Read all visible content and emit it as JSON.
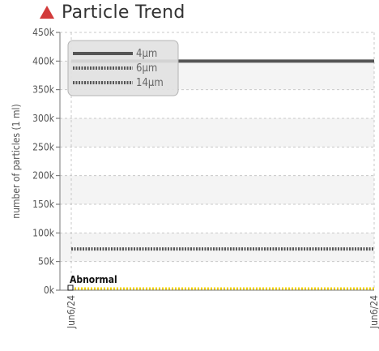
{
  "header": {
    "title": "Particle Trend"
  },
  "colors": {
    "alert_triangle": "#d23a3a",
    "series_4um": "#555555",
    "series_6um": "#555555",
    "series_14um": "#555555",
    "threshold": "#f0d000",
    "grid": "#c8c8c8"
  },
  "icons": {
    "title_icon": "alert-triangle-icon"
  },
  "chart_data": {
    "type": "line",
    "title": "Particle Trend",
    "xlabel": "",
    "ylabel": "number of particles (1 ml)",
    "x": [
      "Jun6/24",
      "Jun6/24"
    ],
    "ylim": [
      0,
      450000
    ],
    "yticks": [
      "0k",
      "50k",
      "100k",
      "150k",
      "200k",
      "250k",
      "300k",
      "350k",
      "400k",
      "450k"
    ],
    "grid": true,
    "legend_position": "top-left",
    "series": [
      {
        "name": "4μm",
        "values": [
          400000,
          400000
        ],
        "style": "solid"
      },
      {
        "name": "6μm",
        "values": [
          72000,
          72000
        ],
        "style": "dotted"
      },
      {
        "name": "14μm",
        "values": [
          0,
          0
        ],
        "style": "dotted"
      }
    ],
    "threshold": {
      "label": "Abnormal",
      "value": 0
    }
  }
}
